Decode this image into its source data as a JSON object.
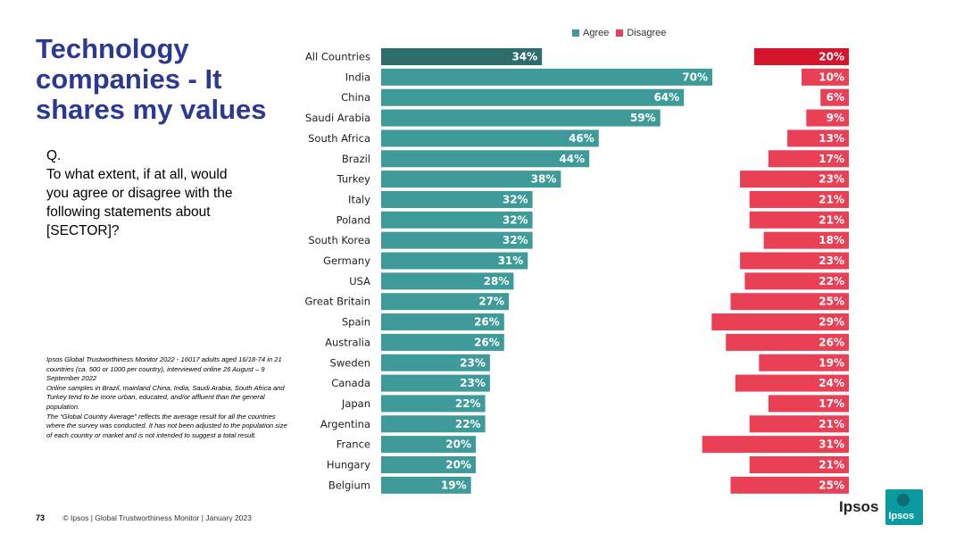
{
  "title": "Technology companies - It shares my values",
  "question": {
    "label": "Q.",
    "text": "To what extent, if at all, would you agree or disagree with the following statements about [SECTOR]?"
  },
  "source_notes": [
    "Ipsos Global Trustworthiness Monitor 2022 - 16017 adults aged 16/18-74 in 21 countries (ca. 500 or 1000 per country), interviewed online 26 August – 9 September 2022",
    "Online samples in Brazil, mainland China, India, Saudi Arabia, South Africa and Turkey tend to be more urban, educated, and/or affluent than the general population.",
    "The “Global Country Average” reflects the average result for all the countries where the survey was conducted. It has not been adjusted to the population size of each country or market and is not intended to suggest a total result."
  ],
  "footer": {
    "page_number": "73",
    "text": "© Ipsos | Global Trustworthiness Monitor | January 2023"
  },
  "logo": {
    "text": "Ipsos",
    "badge": "Ipsos"
  },
  "colors": {
    "agree": "#3e9b9a",
    "agree_highlight": "#2d6e6d",
    "disagree": "#ea4056",
    "disagree_highlight": "#d5152b",
    "title": "#2b3990"
  },
  "chart_data": {
    "type": "bar",
    "orientation": "horizontal-diverging",
    "title": "Technology companies - It shares my values",
    "legend": [
      "Agree",
      "Disagree"
    ],
    "legend_position": "top",
    "categories": [
      "All Countries",
      "India",
      "China",
      "Saudi Arabia",
      "South Africa",
      "Brazil",
      "Turkey",
      "Italy",
      "Poland",
      "South Korea",
      "Germany",
      "USA",
      "Great Britain",
      "Spain",
      "Australia",
      "Sweden",
      "Canada",
      "Japan",
      "Argentina",
      "France",
      "Hungary",
      "Belgium"
    ],
    "series": [
      {
        "name": "Agree",
        "values": [
          34,
          70,
          64,
          59,
          46,
          44,
          38,
          32,
          32,
          32,
          31,
          28,
          27,
          26,
          26,
          23,
          23,
          22,
          22,
          20,
          20,
          19
        ]
      },
      {
        "name": "Disagree",
        "values": [
          20,
          10,
          6,
          9,
          13,
          17,
          23,
          21,
          21,
          18,
          23,
          22,
          25,
          29,
          26,
          19,
          24,
          17,
          21,
          31,
          21,
          25
        ]
      }
    ],
    "value_suffix": "%",
    "highlight_category": "All Countries",
    "xlim": [
      0,
      100
    ]
  }
}
